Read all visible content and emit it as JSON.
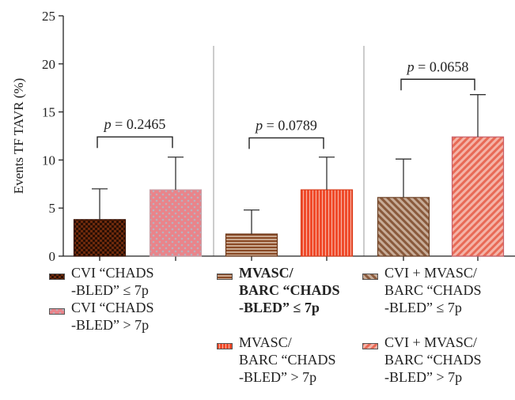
{
  "chart_data": {
    "type": "bar",
    "ylabel": "Events TF TAVR (%)",
    "xlabel": "",
    "ylim": [
      0,
      25
    ],
    "yticks": [
      "0",
      "5",
      "10",
      "15",
      "20",
      "25"
    ],
    "categories": [
      "CVI “CHADS -BLED” ≤ 7p",
      "CVI “CHADS -BLED” > 7p",
      "MVASC/ BARC “CHADS -BLED” ≤ 7p",
      "MVASC/ BARC “CHADS -BLED” > 7p",
      "CVI + MVASC/ BARC “CHADS -BLED” ≤ 7p",
      "CVI + MVASC/ BARC “CHADS -BLED” > 7p"
    ],
    "values": [
      3.8,
      6.9,
      2.3,
      6.9,
      6.1,
      12.4
    ],
    "error_upper": [
      7.0,
      10.3,
      4.8,
      10.3,
      10.1,
      16.8
    ],
    "annotations": [
      {
        "text": "p = 0.2465",
        "pair": [
          0,
          1
        ],
        "level": 12.4
      },
      {
        "text": "p = 0.0789",
        "pair": [
          2,
          3
        ],
        "level": 12.3
      },
      {
        "text": "p = 0.0658",
        "pair": [
          4,
          5
        ],
        "level": 18.4
      }
    ],
    "colors": {
      "dark_brown": "#6e2a0c",
      "pink": "#e9848a",
      "brown": "#8a5a3c",
      "red_orange": "#f04a2a",
      "salmon": "#ec7c68",
      "grey": "#888888"
    },
    "grid": false
  },
  "legend": {
    "items": [
      {
        "label": "CVI “CHADS\n-BLED” ≤ 7p",
        "swatch": "dark-grid",
        "bold": false
      },
      {
        "label": "CVI “CHADS\n-BLED” > 7p",
        "swatch": "pink-dots",
        "bold": false
      },
      {
        "label": "MVASC/\nBARC “CHADS\n-BLED” ≤ 7p",
        "swatch": "brown-horizontal",
        "bold": true
      },
      {
        "label": "MVASC/\nBARC “CHADS\n-BLED” > 7p",
        "swatch": "red-vertical",
        "bold": false
      },
      {
        "label": "CVI + MVASC/\nBARC “CHADS\n-BLED” ≤ 7p",
        "swatch": "brown-diagonal",
        "bold": false
      },
      {
        "label": "CVI + MVASC/\nBARC “CHADS\n-BLED” > 7p",
        "swatch": "salmon-diagonal",
        "bold": false
      }
    ]
  }
}
